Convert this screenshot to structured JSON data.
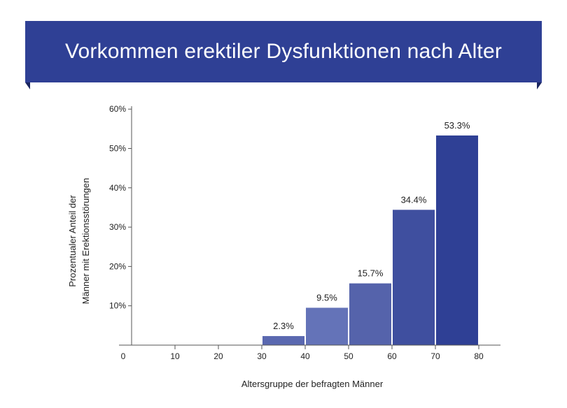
{
  "title": "Vorkommen erektiler Dysfunktionen nach Alter",
  "colors": {
    "banner": "#2f4095",
    "banner_fold": "#1b2660",
    "axis": "#555555"
  },
  "chart_data": {
    "type": "bar",
    "title": "Vorkommen erektiler Dysfunktionen nach Alter",
    "xlabel": "Altersgruppe der befragten Männer",
    "ylabel_lines": [
      "Prozentualer Anteil der",
      "Männer mit Erektionsstörungen"
    ],
    "x_ticks": [
      0,
      10,
      20,
      30,
      40,
      50,
      60,
      70,
      80
    ],
    "y_ticks": [
      10,
      20,
      30,
      40,
      50,
      60
    ],
    "y_tick_labels": [
      "10%",
      "20%",
      "30%",
      "40%",
      "50%",
      "60%"
    ],
    "xlim": [
      0,
      85
    ],
    "ylim": [
      0,
      60
    ],
    "grid": false,
    "legend": "none",
    "bars": [
      {
        "x_start": 30,
        "x_end": 40,
        "value": 2.3,
        "label": "2.3%",
        "color": "#5a68b0"
      },
      {
        "x_start": 40,
        "x_end": 50,
        "value": 9.5,
        "label": "9.5%",
        "color": "#6473b8"
      },
      {
        "x_start": 50,
        "x_end": 60,
        "value": 15.7,
        "label": "15.7%",
        "color": "#5563ab"
      },
      {
        "x_start": 60,
        "x_end": 70,
        "value": 34.4,
        "label": "34.4%",
        "color": "#3f4f9f"
      },
      {
        "x_start": 70,
        "x_end": 80,
        "value": 53.3,
        "label": "53.3%",
        "color": "#2f4095"
      }
    ]
  }
}
